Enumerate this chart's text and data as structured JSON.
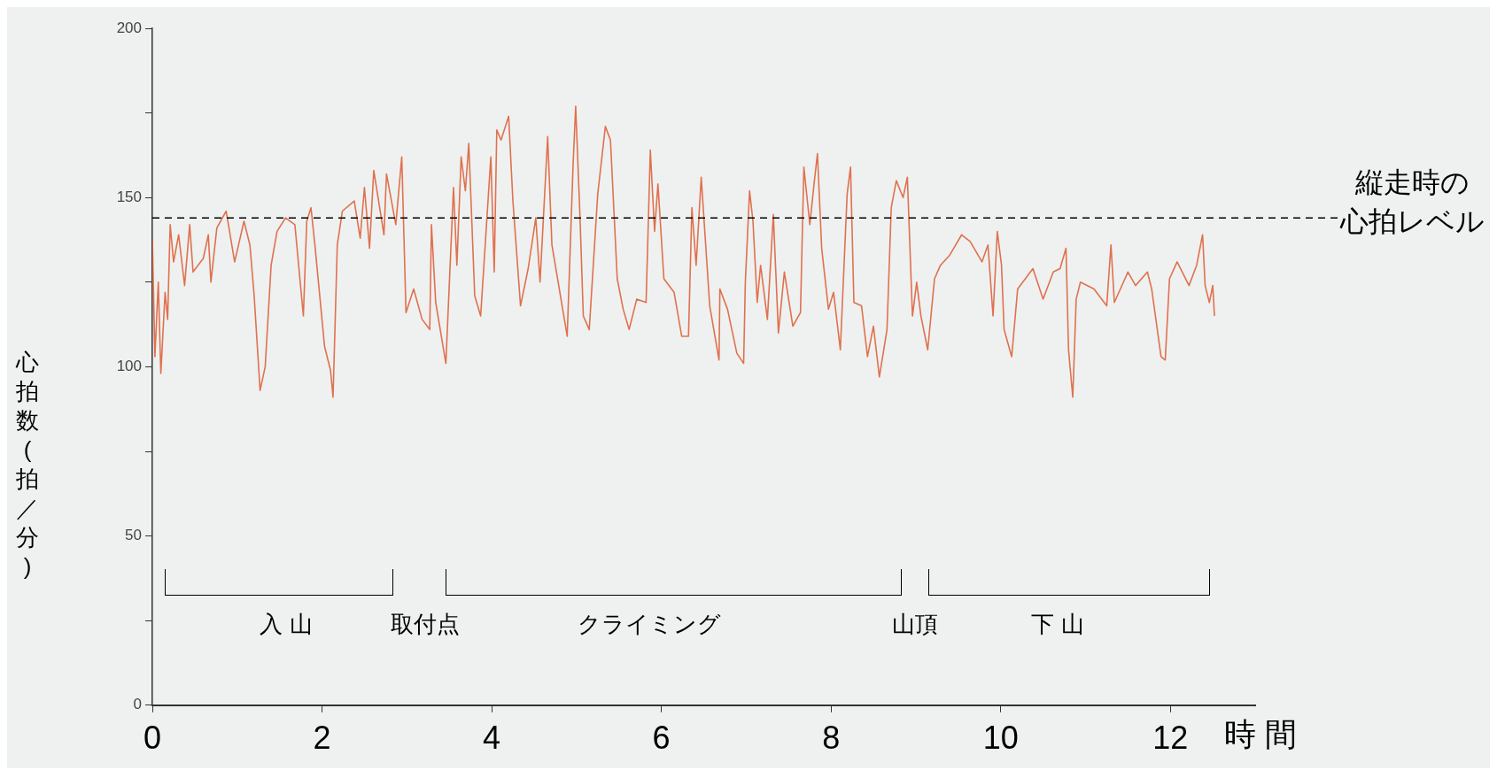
{
  "chart_data": {
    "type": "line",
    "xlabel": "時 間",
    "ylabel": "心拍数(拍／分)",
    "xlim": [
      0,
      13
    ],
    "xticks": [
      0,
      2,
      4,
      6,
      8,
      10,
      12
    ],
    "ylim": [
      0,
      200
    ],
    "yticks": [
      0,
      {
        "value": 25,
        "label": null
      },
      50,
      {
        "value": 75,
        "label": null
      },
      100,
      {
        "value": 125,
        "label": null
      },
      150,
      {
        "value": 175,
        "label": null
      },
      200
    ],
    "grid": false,
    "legend": false,
    "marker": "none",
    "line_style": "solid",
    "series": [
      {
        "color": "#e0714f",
        "x": [
          0,
          0.03,
          0.07,
          0.1,
          0.15,
          0.18,
          0.21,
          0.25,
          0.31,
          0.38,
          0.44,
          0.48,
          0.6,
          0.66,
          0.69,
          0.76,
          0.87,
          0.97,
          1.08,
          1.15,
          1.2,
          1.27,
          1.33,
          1.4,
          1.47,
          1.57,
          1.68,
          1.78,
          1.82,
          1.87,
          1.92,
          2.03,
          2.1,
          2.13,
          2.18,
          2.24,
          2.38,
          2.45,
          2.5,
          2.56,
          2.61,
          2.73,
          2.76,
          2.87,
          2.94,
          2.99,
          3.08,
          3.18,
          3.27,
          3.29,
          3.34,
          3.46,
          3.55,
          3.59,
          3.64,
          3.69,
          3.73,
          3.8,
          3.87,
          3.99,
          4.03,
          4.06,
          4.11,
          4.2,
          4.25,
          4.34,
          4.43,
          4.52,
          4.57,
          4.66,
          4.71,
          4.89,
          4.96,
          4.99,
          5.04,
          5.08,
          5.15,
          5.25,
          5.34,
          5.4,
          5.48,
          5.55,
          5.62,
          5.71,
          5.82,
          5.87,
          5.92,
          5.96,
          6.03,
          6.15,
          6.24,
          6.32,
          6.36,
          6.41,
          6.47,
          6.57,
          6.68,
          6.69,
          6.78,
          6.89,
          6.97,
          6.99,
          7.04,
          7.08,
          7.13,
          7.17,
          7.25,
          7.32,
          7.38,
          7.45,
          7.55,
          7.64,
          7.68,
          7.75,
          7.8,
          7.84,
          7.89,
          7.97,
          8.03,
          8.11,
          8.19,
          8.23,
          8.27,
          8.36,
          8.43,
          8.5,
          8.57,
          8.66,
          8.71,
          8.77,
          8.85,
          8.9,
          8.96,
          9.01,
          9.06,
          9.14,
          9.22,
          9.29,
          9.4,
          9.54,
          9.64,
          9.78,
          9.85,
          9.91,
          9.96,
          10.01,
          10.04,
          10.13,
          10.2,
          10.38,
          10.5,
          10.62,
          10.7,
          10.77,
          10.8,
          10.85,
          10.89,
          10.94,
          11.1,
          11.25,
          11.3,
          11.34,
          11.5,
          11.59,
          11.73,
          11.78,
          11.89,
          11.94,
          11.99,
          12.08,
          12.22,
          12.31,
          12.38,
          12.41,
          12.46,
          12.5,
          12.52
        ],
        "values": [
          138,
          103,
          125,
          98,
          122,
          114,
          142,
          131,
          139,
          124,
          142,
          128,
          132,
          139,
          125,
          141,
          146,
          131,
          143,
          136,
          121,
          93,
          100,
          130,
          140,
          144,
          142,
          115,
          143,
          147,
          135,
          106,
          99,
          91,
          136,
          146,
          149,
          138,
          153,
          135,
          158,
          139,
          157,
          142,
          162,
          116,
          123,
          114,
          111,
          142,
          119,
          101,
          153,
          130,
          162,
          152,
          166,
          121,
          115,
          162,
          128,
          170,
          167,
          174,
          149,
          118,
          129,
          144,
          125,
          168,
          136,
          109,
          160,
          177,
          145,
          115,
          111,
          151,
          171,
          167,
          126,
          117,
          111,
          120,
          119,
          164,
          140,
          154,
          126,
          122,
          109,
          109,
          147,
          130,
          156,
          118,
          102,
          123,
          117,
          104,
          101,
          125,
          152,
          143,
          119,
          130,
          114,
          145,
          110,
          128,
          112,
          116,
          159,
          142,
          154,
          163,
          135,
          117,
          122,
          105,
          151,
          159,
          119,
          118,
          103,
          112,
          97,
          111,
          147,
          155,
          150,
          156,
          115,
          125,
          115,
          105,
          126,
          130,
          133,
          139,
          137,
          131,
          136,
          115,
          140,
          130,
          111,
          103,
          123,
          129,
          120,
          128,
          129,
          135,
          105,
          91,
          120,
          125,
          123,
          118,
          136,
          119,
          128,
          124,
          128,
          123,
          103,
          102,
          126,
          131,
          124,
          130,
          139,
          124,
          119,
          124,
          115
        ]
      }
    ],
    "ref_lines": [
      {
        "axis": "y",
        "value": 144,
        "label": "縦走時の心拍レベル",
        "color": "#000000",
        "line_style": "dashed"
      }
    ],
    "annotations": [
      "入 山",
      "取付点",
      "クライミング",
      "山頂",
      "下 山"
    ]
  }
}
